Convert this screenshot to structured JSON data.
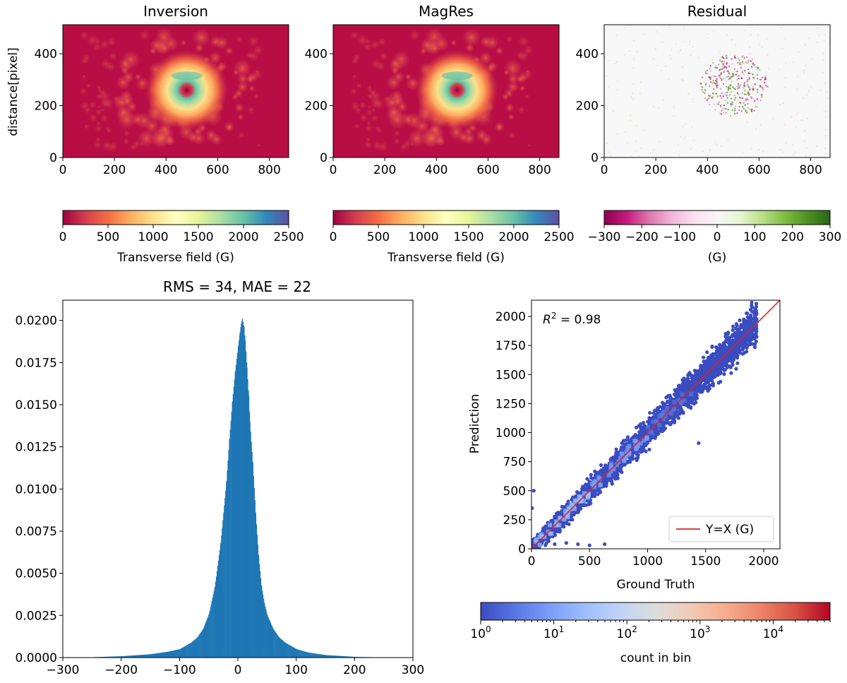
{
  "figure": {
    "panels": {
      "inversion": {
        "title": "Inversion",
        "ylabel": "distance[pixel]"
      },
      "magres": {
        "title": "MagRes"
      },
      "residual": {
        "title": "Residual"
      }
    },
    "colorbars": {
      "inversion": {
        "label": "Transverse field (G)",
        "ticks": [
          "0",
          "500",
          "1000",
          "1500",
          "2000",
          "2500"
        ],
        "colormap": "Spectral"
      },
      "magres": {
        "label": "Transverse field (G)",
        "ticks": [
          "0",
          "500",
          "1000",
          "1500",
          "2000",
          "2500"
        ],
        "colormap": "Spectral"
      },
      "residual": {
        "label": "(G)",
        "ticks": [
          "−300",
          "−200",
          "−100",
          "0",
          "100",
          "200",
          "300"
        ],
        "colormap": "PiYG"
      },
      "density": {
        "label": "count in bin",
        "colormap": "coolwarm",
        "scale": "log"
      }
    },
    "map_axes": {
      "x_ticks": [
        "0",
        "200",
        "400",
        "600",
        "800"
      ],
      "y_ticks": [
        "0",
        "200",
        "400"
      ]
    }
  },
  "chart_data": [
    {
      "type": "heatmap",
      "name": "Inversion",
      "title": "Inversion",
      "ylabel": "distance[pixel]",
      "xlim": [
        0,
        875
      ],
      "ylim": [
        0,
        512
      ],
      "value_range": [
        0,
        2500
      ],
      "units": "G",
      "features": {
        "sunspot_center": [
          480,
          260
        ],
        "penumbra_radius": 120,
        "background_level": 150,
        "peak_level": 2200
      }
    },
    {
      "type": "heatmap",
      "name": "MagRes",
      "title": "MagRes",
      "xlim": [
        0,
        875
      ],
      "ylim": [
        0,
        512
      ],
      "value_range": [
        0,
        2500
      ],
      "units": "G",
      "features": {
        "sunspot_center": [
          480,
          260
        ],
        "penumbra_radius": 120,
        "background_level": 150,
        "peak_level": 2200
      }
    },
    {
      "type": "heatmap",
      "name": "Residual",
      "title": "Residual",
      "xlim": [
        0,
        875
      ],
      "ylim": [
        0,
        512
      ],
      "value_range": [
        -300,
        300
      ],
      "units": "G",
      "features": {
        "sunspot_center": [
          500,
          280
        ],
        "max_abs_residual": 300
      }
    },
    {
      "type": "bar",
      "name": "residual-histogram",
      "title": "RMS = 34, MAE = 22",
      "xlim": [
        -300,
        300
      ],
      "ylim": [
        0,
        0.0212
      ],
      "x_ticks": [
        -300,
        -200,
        -100,
        0,
        100,
        200,
        300
      ],
      "y_ticks": [
        "0.0000",
        "0.0025",
        "0.0050",
        "0.0075",
        "0.0100",
        "0.0125",
        "0.0150",
        "0.0175",
        "0.0200"
      ],
      "color": "#1f77b4",
      "x": [
        -300,
        -250,
        -200,
        -150,
        -120,
        -100,
        -90,
        -80,
        -70,
        -60,
        -50,
        -40,
        -30,
        -20,
        -15,
        -10,
        -5,
        0,
        3,
        5,
        7,
        10,
        12,
        15,
        18,
        20,
        25,
        30,
        35,
        40,
        45,
        50,
        60,
        70,
        80,
        90,
        100,
        120,
        150,
        200,
        250,
        300
      ],
      "values": [
        0,
        2e-05,
        8e-05,
        0.0002,
        0.00035,
        0.0005,
        0.0007,
        0.0009,
        0.0012,
        0.0017,
        0.0026,
        0.0042,
        0.0068,
        0.0105,
        0.013,
        0.0152,
        0.017,
        0.0185,
        0.0193,
        0.0198,
        0.0201,
        0.0196,
        0.0188,
        0.0172,
        0.0155,
        0.014,
        0.0115,
        0.0085,
        0.006,
        0.0042,
        0.0032,
        0.0025,
        0.0017,
        0.0012,
        0.0009,
        0.0007,
        0.0005,
        0.0003,
        0.00015,
        4e-05,
        1e-05,
        0
      ]
    },
    {
      "type": "scatter",
      "name": "prediction-vs-truth",
      "xlabel": "Ground Truth",
      "ylabel": "Prediction",
      "xlim": [
        0,
        2140
      ],
      "ylim": [
        0,
        2140
      ],
      "x_ticks": [
        0,
        500,
        1000,
        1500,
        2000
      ],
      "y_ticks": [
        0,
        250,
        500,
        750,
        1000,
        1250,
        1500,
        1750,
        2000
      ],
      "annotation": "= 0.98",
      "annotation_symbol": "R",
      "annotation_superscript": "2",
      "annotation_color": "#0000ff",
      "legend": {
        "entry": "Y=X (G)",
        "color": "#d62728",
        "placement": "lower right"
      },
      "point_color": "#3b4cc0",
      "cloud": {
        "x_range": [
          0,
          1940
        ],
        "band_halfwidth": 180,
        "spread_growth": 0.08
      },
      "outliers": [
        [
          120,
          30
        ],
        [
          200,
          40
        ],
        [
          300,
          50
        ],
        [
          400,
          40
        ],
        [
          500,
          30
        ],
        [
          630,
          40
        ],
        [
          1440,
          910
        ],
        [
          20,
          500
        ],
        [
          5,
          350
        ]
      ]
    },
    {
      "type": "heatmap",
      "name": "count-colorbar",
      "label": "count in bin",
      "scale": "log",
      "range": [
        1,
        60000
      ],
      "tick_values": [
        1,
        10,
        100,
        1000,
        10000
      ],
      "tick_labels": [
        {
          "base": "10",
          "exp": "0"
        },
        {
          "base": "10",
          "exp": "1"
        },
        {
          "base": "10",
          "exp": "2"
        },
        {
          "base": "10",
          "exp": "3"
        },
        {
          "base": "10",
          "exp": "4"
        }
      ]
    }
  ]
}
